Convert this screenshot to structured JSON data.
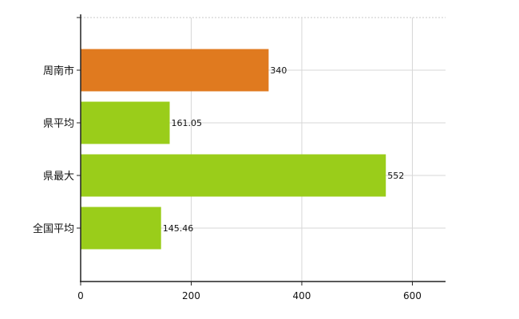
{
  "chart_data": {
    "type": "bar",
    "orientation": "horizontal",
    "categories": [
      "周南市",
      "県平均",
      "県最大",
      "全国平均"
    ],
    "values": [
      340,
      161.05,
      552,
      145.46
    ],
    "value_labels": [
      "340",
      "161.05",
      "552",
      "145.46"
    ],
    "bar_colors": [
      "#e07a1f",
      "#9acd1a",
      "#9acd1a",
      "#9acd1a"
    ],
    "xlim": [
      0,
      660
    ],
    "x_ticks": [
      0,
      200,
      400,
      600
    ],
    "x_tick_labels": [
      "0",
      "200",
      "400",
      "600"
    ],
    "grid": true,
    "title": "",
    "xlabel": "",
    "ylabel": ""
  }
}
